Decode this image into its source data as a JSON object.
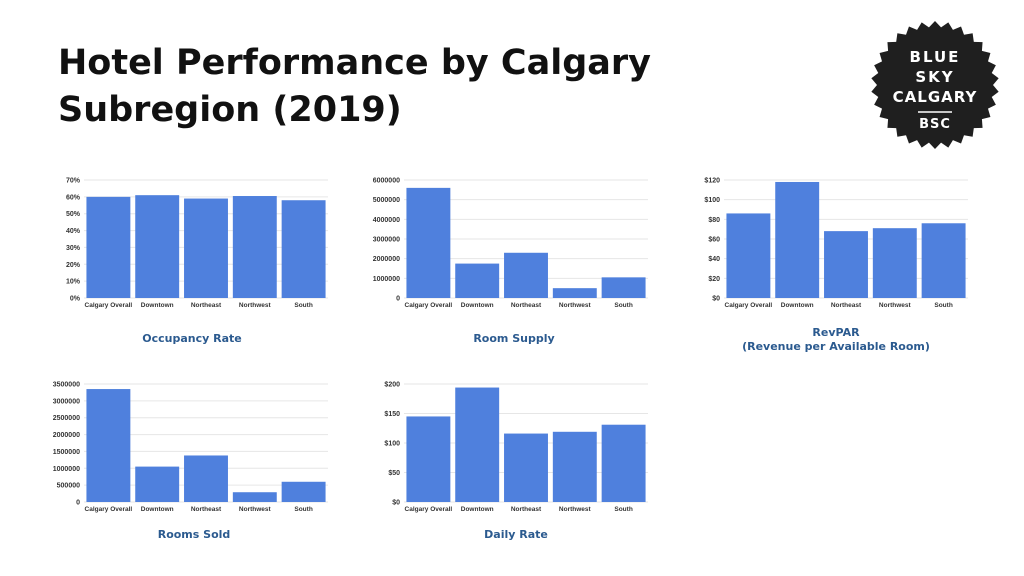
{
  "header": {
    "title": "Hotel Performance by Calgary Subregion (2019)"
  },
  "logo": {
    "lines": [
      "BLUE",
      "SKY",
      "CALGARY",
      "BSC"
    ],
    "background": "#1f1f1f",
    "text_color": "#ffffff"
  },
  "colors": {
    "bar": "#4f80dd",
    "grid": "#e6e6e6",
    "caption": "#2b5a8f"
  },
  "chart_data": [
    {
      "id": "occupancy",
      "type": "bar",
      "title": "Occupancy Rate",
      "subtitle": "",
      "categories": [
        "Calgary Overall",
        "Downtown",
        "Northeast",
        "Northwest",
        "South"
      ],
      "values": [
        60,
        61,
        59,
        60.5,
        58
      ],
      "ylim": [
        0,
        70
      ],
      "yticks": [
        0,
        10,
        20,
        30,
        40,
        50,
        60,
        70
      ],
      "ytick_labels": [
        "0%",
        "10%",
        "20%",
        "30%",
        "40%",
        "50%",
        "60%",
        "70%"
      ],
      "grid": true
    },
    {
      "id": "supply",
      "type": "bar",
      "title": "Room Supply",
      "subtitle": "",
      "categories": [
        "Calgary Overall",
        "Downtown",
        "Northeast",
        "Northwest",
        "South"
      ],
      "values": [
        5600000,
        1750000,
        2300000,
        500000,
        1050000
      ],
      "ylim": [
        0,
        6000000
      ],
      "yticks": [
        0,
        1000000,
        2000000,
        3000000,
        4000000,
        5000000,
        6000000
      ],
      "ytick_labels": [
        "0",
        "1000000",
        "2000000",
        "3000000",
        "4000000",
        "5000000",
        "6000000"
      ],
      "grid": true
    },
    {
      "id": "revpar",
      "type": "bar",
      "title": "RevPAR",
      "subtitle": "(Revenue per Available Room)",
      "categories": [
        "Calgary Overall",
        "Downtown",
        "Northeast",
        "Northwest",
        "South"
      ],
      "values": [
        86,
        118,
        68,
        71,
        76
      ],
      "ylim": [
        0,
        120
      ],
      "yticks": [
        0,
        20,
        40,
        60,
        80,
        100,
        120
      ],
      "ytick_labels": [
        "$0",
        "$20",
        "$40",
        "$60",
        "$80",
        "$100",
        "$120"
      ],
      "grid": true
    },
    {
      "id": "sold",
      "type": "bar",
      "title": "Rooms Sold",
      "subtitle": "",
      "categories": [
        "Calgary Overall",
        "Downtown",
        "Northeast",
        "Northwest",
        "South"
      ],
      "values": [
        3350000,
        1050000,
        1380000,
        290000,
        600000
      ],
      "ylim": [
        0,
        3500000
      ],
      "yticks": [
        0,
        500000,
        1000000,
        1500000,
        2000000,
        2500000,
        3000000,
        3500000
      ],
      "ytick_labels": [
        "0",
        "500000",
        "1000000",
        "1500000",
        "2000000",
        "2500000",
        "3000000",
        "3500000"
      ],
      "grid": true
    },
    {
      "id": "daily",
      "type": "bar",
      "title": "Daily Rate",
      "subtitle": "",
      "categories": [
        "Calgary Overall",
        "Downtown",
        "Northeast",
        "Northwest",
        "South"
      ],
      "values": [
        145,
        194,
        116,
        119,
        131
      ],
      "ylim": [
        0,
        200
      ],
      "yticks": [
        0,
        50,
        100,
        150,
        200
      ],
      "ytick_labels": [
        "$0",
        "$50",
        "$100",
        "$150",
        "$200"
      ],
      "grid": true
    }
  ]
}
